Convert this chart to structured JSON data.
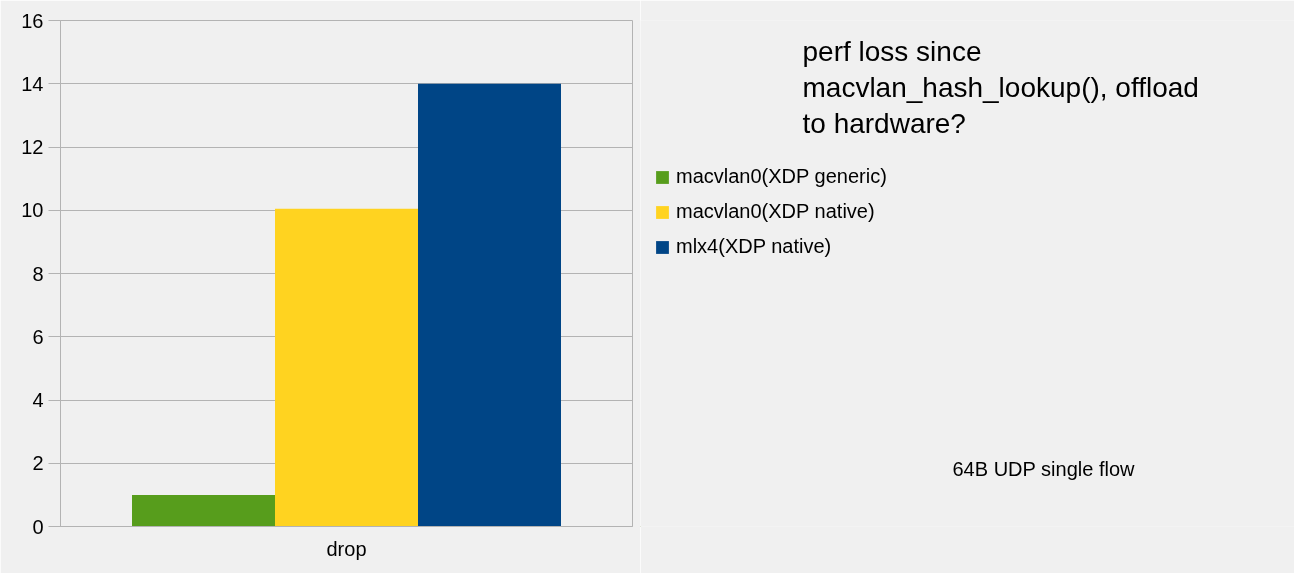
{
  "chart_data": {
    "type": "bar",
    "title": "perf loss since\nmacvlan_hash_lookup(), offload\nto hardware?",
    "annotations": [
      "64B UDP single flow"
    ],
    "categories": [
      "drop"
    ],
    "series": [
      {
        "name": "macvlan0(XDP generic)",
        "color": "#579d1c",
        "values": [
          1.0
        ]
      },
      {
        "name": "macvlan0(XDP native)",
        "color": "#ffd320",
        "values": [
          10.05
        ]
      },
      {
        "name": "mlx4(XDP native)",
        "color": "#004586",
        "values": [
          14.0
        ]
      }
    ],
    "ylim": [
      0,
      16
    ],
    "yticks": [
      0,
      2,
      4,
      6,
      8,
      10,
      12,
      14,
      16
    ],
    "grid": "y",
    "legend": "right"
  }
}
